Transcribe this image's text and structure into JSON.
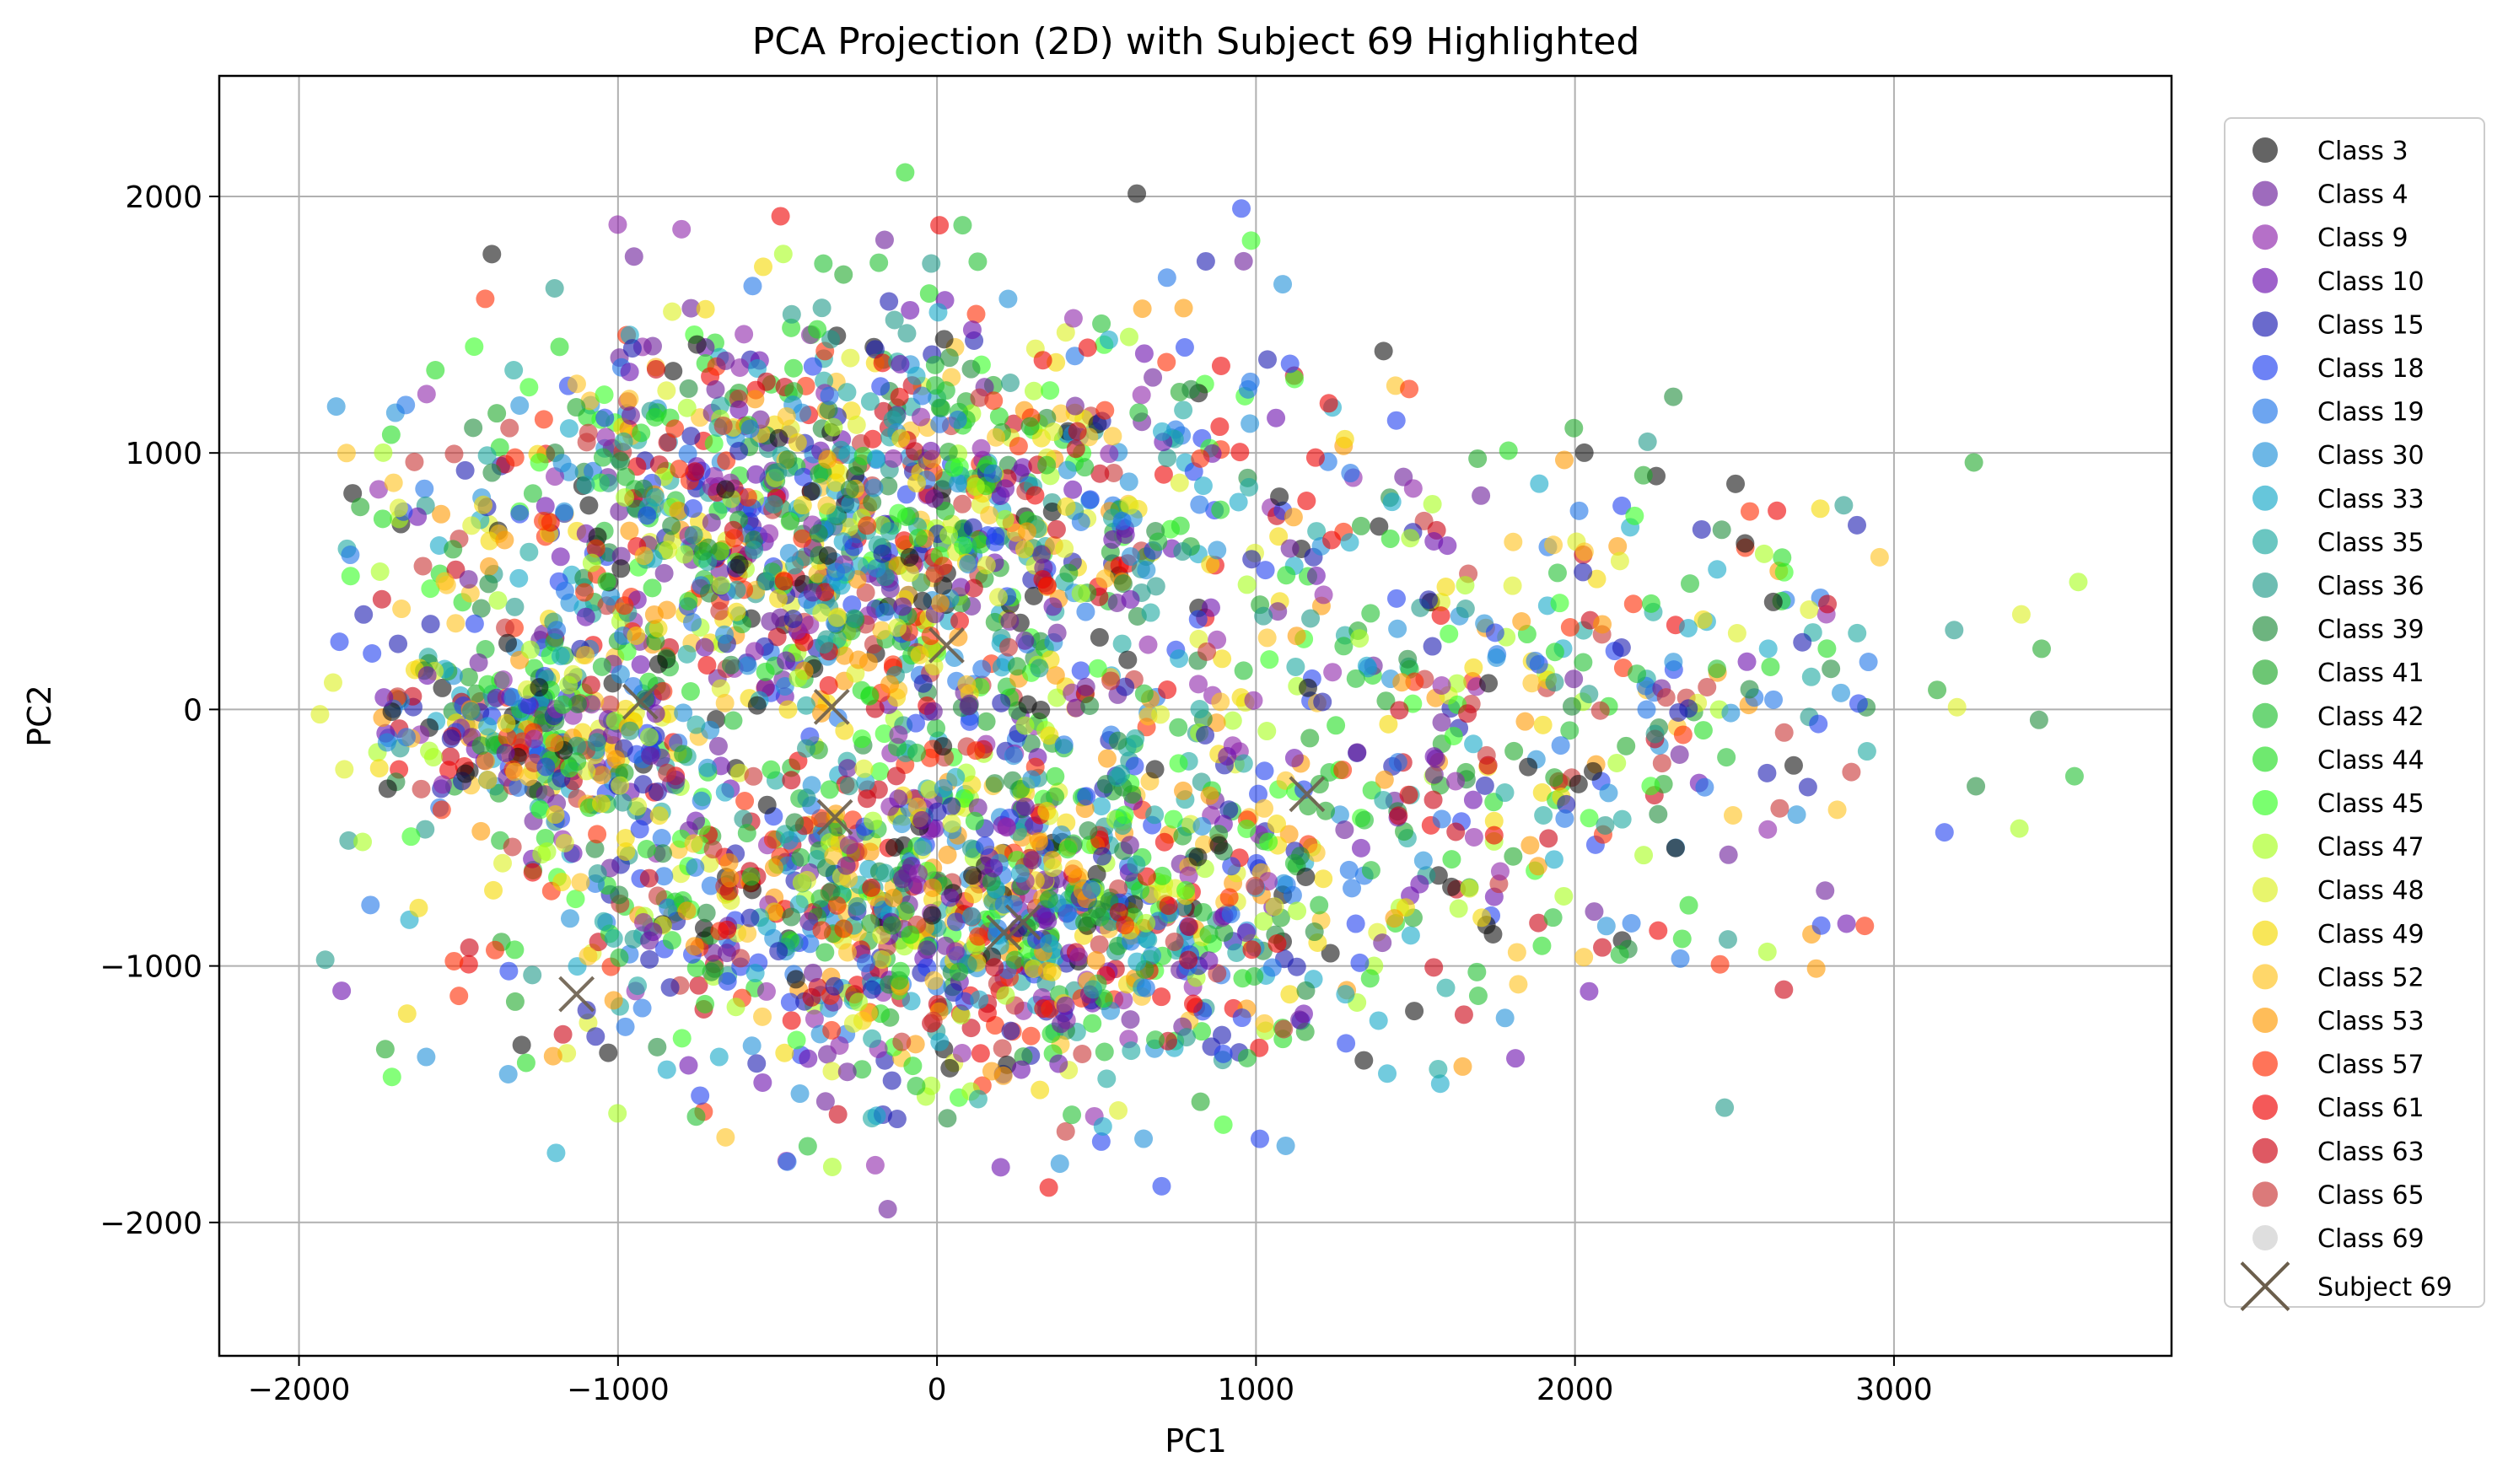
{
  "chart_data": {
    "type": "scatter",
    "title": "PCA Projection (2D) with Subject 69 Highlighted",
    "xlabel": "PC1",
    "ylabel": "PC2",
    "xlim": [
      -2250,
      3870
    ],
    "ylim": [
      -2520,
      2470
    ],
    "xticks": [
      -2000,
      -1000,
      0,
      1000,
      2000,
      3000
    ],
    "xtick_labels": [
      "−2000",
      "−1000",
      "0",
      "1000",
      "2000",
      "3000"
    ],
    "yticks": [
      -2000,
      -1000,
      0,
      1000,
      2000
    ],
    "ytick_labels": [
      "−2000",
      "−1000",
      "0",
      "1000",
      "2000"
    ],
    "grid": true,
    "legend_position": "outside-right",
    "series": [
      {
        "name": "Class 3",
        "color": "#111111"
      },
      {
        "name": "Class 4",
        "color": "#6a1b9a"
      },
      {
        "name": "Class 9",
        "color": "#8e24aa"
      },
      {
        "name": "Class 10",
        "color": "#6a0dad"
      },
      {
        "name": "Class 15",
        "color": "#1a1ab0"
      },
      {
        "name": "Class 18",
        "color": "#1f3ff0"
      },
      {
        "name": "Class 19",
        "color": "#1e74e8"
      },
      {
        "name": "Class 30",
        "color": "#1e90d8"
      },
      {
        "name": "Class 33",
        "color": "#14a8c8"
      },
      {
        "name": "Class 35",
        "color": "#1aa8a0"
      },
      {
        "name": "Class 36",
        "color": "#1e9a88"
      },
      {
        "name": "Class 39",
        "color": "#1e8c3a"
      },
      {
        "name": "Class 41",
        "color": "#1ea82a"
      },
      {
        "name": "Class 42",
        "color": "#20c030"
      },
      {
        "name": "Class 44",
        "color": "#22dd22"
      },
      {
        "name": "Class 45",
        "color": "#33ff22"
      },
      {
        "name": "Class 47",
        "color": "#a6ff1a"
      },
      {
        "name": "Class 48",
        "color": "#dcf01e"
      },
      {
        "name": "Class 49",
        "color": "#f5d800"
      },
      {
        "name": "Class 52",
        "color": "#ffc21a"
      },
      {
        "name": "Class 53",
        "color": "#ff9a00"
      },
      {
        "name": "Class 57",
        "color": "#ff2a00"
      },
      {
        "name": "Class 61",
        "color": "#ee0000"
      },
      {
        "name": "Class 63",
        "color": "#cc0010"
      },
      {
        "name": "Class 65",
        "color": "#c83232"
      },
      {
        "name": "Class 69",
        "color": "#cccccc"
      }
    ],
    "highlight": {
      "name": "Subject 69",
      "marker": "x",
      "color": "#6b5e4c",
      "points": [
        [
          -930,
          30
        ],
        [
          -330,
          10
        ],
        [
          30,
          250
        ],
        [
          -320,
          -420
        ],
        [
          210,
          -870
        ],
        [
          270,
          -830
        ],
        [
          1160,
          -330
        ],
        [
          -1130,
          -1110
        ]
      ]
    }
  }
}
